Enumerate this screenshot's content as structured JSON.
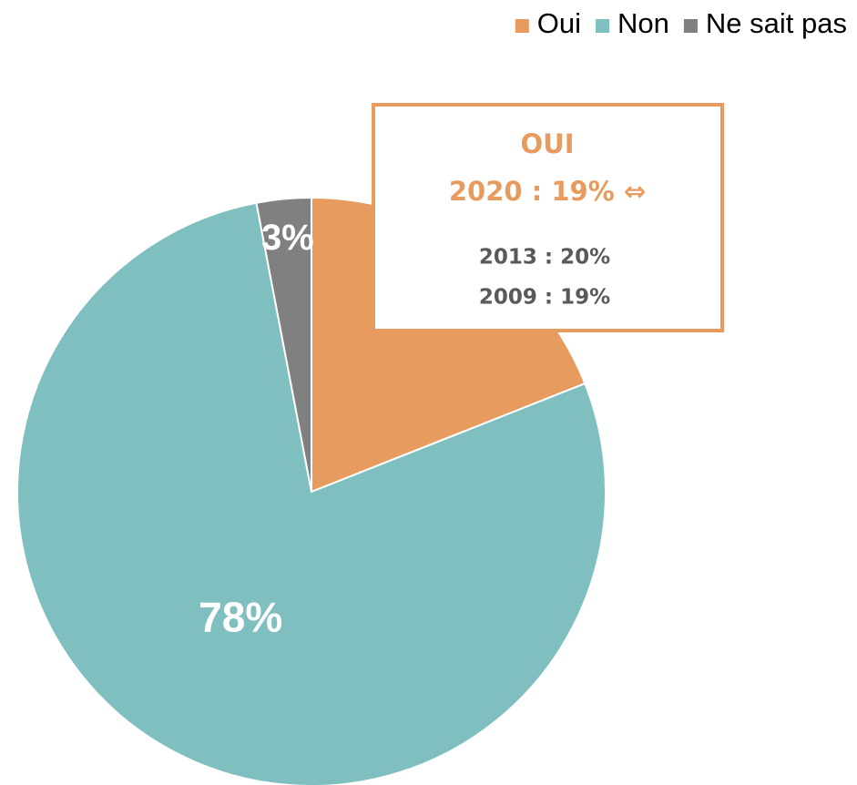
{
  "chart_data": {
    "type": "pie",
    "categories": [
      "Oui",
      "Non",
      "Ne sait pas"
    ],
    "values": [
      19,
      78,
      3
    ],
    "value_labels": [
      null,
      "78%",
      "3%"
    ],
    "colors": [
      "#e89b5e",
      "#80bfc0",
      "#808080"
    ],
    "legend": "top-right",
    "annotations": [
      "OUI",
      "2020 : 19% ⇔",
      "2013 : 20%",
      "2009 : 19%"
    ]
  }
}
